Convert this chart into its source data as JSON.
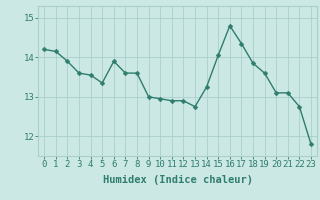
{
  "x": [
    0,
    1,
    2,
    3,
    4,
    5,
    6,
    7,
    8,
    9,
    10,
    11,
    12,
    13,
    14,
    15,
    16,
    17,
    18,
    19,
    20,
    21,
    22,
    23
  ],
  "y": [
    14.2,
    14.15,
    13.9,
    13.6,
    13.55,
    13.35,
    13.9,
    13.6,
    13.6,
    13.0,
    12.95,
    12.9,
    12.9,
    12.75,
    13.25,
    14.05,
    14.8,
    14.35,
    13.85,
    13.6,
    13.1,
    13.1,
    12.75,
    11.8
  ],
  "line_color": "#2e7d6e",
  "marker": "D",
  "marker_size": 2.5,
  "bg_color": "#cce8e4",
  "grid_color": "#aacfca",
  "xlabel": "Humidex (Indice chaleur)",
  "ylim": [
    11.5,
    15.3
  ],
  "xlim": [
    -0.5,
    23.5
  ],
  "yticks": [
    12,
    13,
    14,
    15
  ],
  "xticks": [
    0,
    1,
    2,
    3,
    4,
    5,
    6,
    7,
    8,
    9,
    10,
    11,
    12,
    13,
    14,
    15,
    16,
    17,
    18,
    19,
    20,
    21,
    22,
    23
  ],
  "tick_fontsize": 6.5,
  "label_fontsize": 7.5
}
